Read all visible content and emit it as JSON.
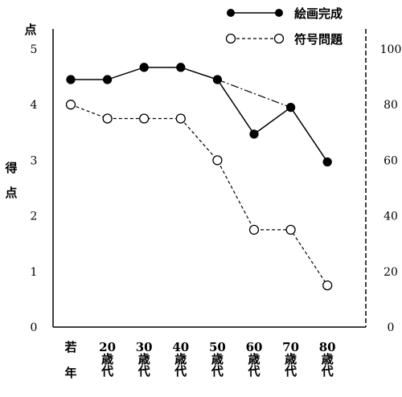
{
  "chart_data": {
    "type": "line",
    "title": "",
    "categories": [
      {
        "lines": [
          "若",
          "年"
        ]
      },
      {
        "lines": [
          "20",
          "歳",
          "代"
        ]
      },
      {
        "lines": [
          "30",
          "歳",
          "代"
        ]
      },
      {
        "lines": [
          "40",
          "歳",
          "代"
        ]
      },
      {
        "lines": [
          "50",
          "歳",
          "代"
        ]
      },
      {
        "lines": [
          "60",
          "歳",
          "代"
        ]
      },
      {
        "lines": [
          "70",
          "歳",
          "代"
        ]
      },
      {
        "lines": [
          "80",
          "歳",
          "代"
        ]
      }
    ],
    "left_axis": {
      "label_top": "点",
      "label_side": [
        "得",
        "点"
      ],
      "ylim": [
        0,
        5
      ],
      "ticks": [
        "0",
        "1",
        "2",
        "3",
        "4",
        "5"
      ]
    },
    "right_axis": {
      "ylim": [
        0,
        100
      ],
      "ticks": [
        "0",
        "20",
        "40",
        "60",
        "80",
        "100"
      ]
    },
    "series": [
      {
        "name": "絵画完成",
        "axis": "left",
        "marker": "filled",
        "line_style": "solid",
        "values": [
          4.45,
          4.45,
          4.67,
          4.67,
          4.45,
          3.47,
          3.95,
          2.97
        ]
      },
      {
        "name": "符号問題",
        "axis": "right",
        "marker": "open",
        "line_style": "dashed",
        "values": [
          80,
          75,
          75,
          75,
          60,
          35,
          35,
          15
        ]
      }
    ],
    "extra_line": {
      "style": "dash-dot",
      "from_category": 4,
      "to_category": 6,
      "series": "絵画完成"
    },
    "legend": {
      "placement": "top-right"
    },
    "grid": false
  }
}
